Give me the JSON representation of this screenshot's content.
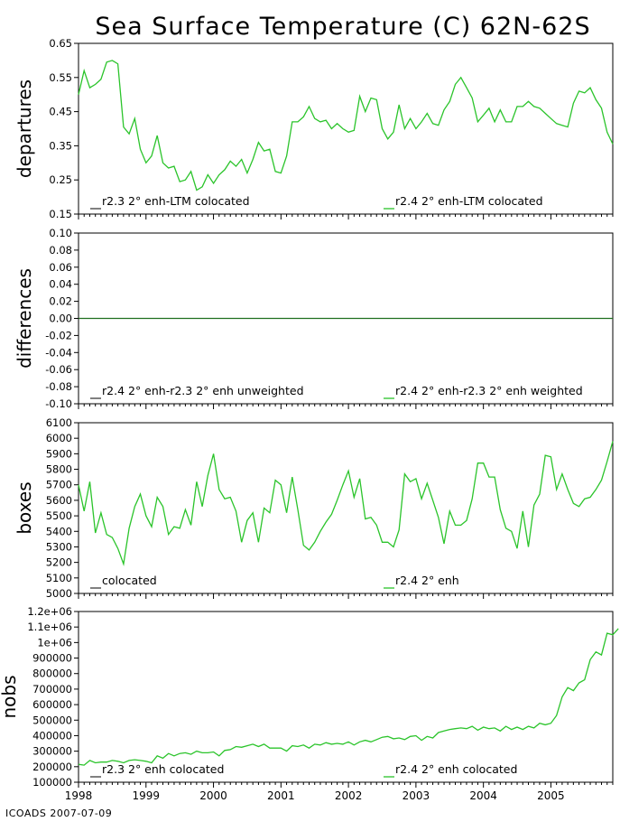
{
  "title": "Sea Surface Temperature (C) 62N-62S",
  "footer": "ICOADS 2007-07-09",
  "colors": {
    "series_a": "#000000",
    "series_b": "#2bc42b",
    "frame": "#000000"
  },
  "x_axis": {
    "range": [
      1998.0,
      2005.917
    ],
    "ticks": [
      1998,
      1999,
      2000,
      2001,
      2002,
      2003,
      2004,
      2005
    ],
    "tick_labels": [
      "1998",
      "1999",
      "2000",
      "2001",
      "2002",
      "2003",
      "2004",
      "2005"
    ]
  },
  "chart_data": [
    {
      "type": "line",
      "ylabel": "departures",
      "ylim": [
        0.15,
        0.65
      ],
      "yticks": [
        0.15,
        0.25,
        0.35,
        0.45,
        0.55,
        0.65
      ],
      "ytick_labels": [
        "0.15",
        "0.25",
        "0.35",
        "0.45",
        "0.55",
        "0.65"
      ],
      "legend": [
        "r2.3 2° enh-LTM colocated",
        "r2.4 2° enh-LTM colocated"
      ],
      "x_start": 1998.0,
      "x_step": 0.0833333,
      "series": [
        {
          "name": "r2.4 2° enh-LTM colocated",
          "values": [
            0.5,
            0.57,
            0.52,
            0.53,
            0.545,
            0.595,
            0.6,
            0.59,
            0.405,
            0.385,
            0.43,
            0.34,
            0.3,
            0.32,
            0.38,
            0.3,
            0.285,
            0.29,
            0.245,
            0.25,
            0.275,
            0.22,
            0.23,
            0.265,
            0.24,
            0.265,
            0.28,
            0.305,
            0.29,
            0.31,
            0.27,
            0.31,
            0.36,
            0.335,
            0.34,
            0.275,
            0.27,
            0.32,
            0.42,
            0.42,
            0.435,
            0.465,
            0.43,
            0.42,
            0.425,
            0.4,
            0.415,
            0.4,
            0.39,
            0.395,
            0.495,
            0.45,
            0.49,
            0.485,
            0.4,
            0.37,
            0.39,
            0.47,
            0.4,
            0.43,
            0.4,
            0.42,
            0.445,
            0.415,
            0.41,
            0.455,
            0.48,
            0.53,
            0.55,
            0.52,
            0.49,
            0.42,
            0.44,
            0.46,
            0.42,
            0.455,
            0.42,
            0.42,
            0.465,
            0.465,
            0.48,
            0.465,
            0.46,
            0.445,
            0.43,
            0.415,
            0.41,
            0.405,
            0.475,
            0.51,
            0.505,
            0.52,
            0.485,
            0.46,
            0.39,
            0.355
          ]
        }
      ]
    },
    {
      "type": "line",
      "ylabel": "differences",
      "ylim": [
        -0.1,
        0.1
      ],
      "yticks": [
        -0.1,
        -0.08,
        -0.06,
        -0.04,
        -0.02,
        0.0,
        0.02,
        0.04,
        0.06,
        0.08,
        0.1
      ],
      "ytick_labels": [
        "-0.10",
        "-0.08",
        "-0.06",
        "-0.04",
        "-0.02",
        "0.00",
        "0.02",
        "0.04",
        "0.06",
        "0.08",
        "0.10"
      ],
      "legend": [
        "r2.4 2° enh-r2.3 2° enh unweighted",
        "r2.4 2° enh-r2.3 2° enh weighted"
      ],
      "x_start": 1998.0,
      "x_step": 0.0833333,
      "series": [
        {
          "name": "r2.4 2° enh-r2.3 2° enh unweighted",
          "values": [
            0.0,
            0.0
          ]
        }
      ]
    },
    {
      "type": "line",
      "ylabel": "boxes",
      "ylim": [
        5000,
        6100
      ],
      "yticks": [
        5000,
        5100,
        5200,
        5300,
        5400,
        5500,
        5600,
        5700,
        5800,
        5900,
        6000,
        6100
      ],
      "ytick_labels": [
        "5000",
        "5100",
        "5200",
        "5300",
        "5400",
        "5500",
        "5600",
        "5700",
        "5800",
        "5900",
        "6000",
        "6100"
      ],
      "legend": [
        "colocated",
        "r2.4 2° enh"
      ],
      "x_start": 1998.0,
      "x_step": 0.0833333,
      "series": [
        {
          "name": "r2.4 2° enh",
          "values": [
            5700,
            5530,
            5720,
            5390,
            5520,
            5380,
            5360,
            5290,
            5190,
            5420,
            5560,
            5640,
            5500,
            5430,
            5620,
            5560,
            5380,
            5430,
            5420,
            5540,
            5440,
            5720,
            5560,
            5760,
            5900,
            5670,
            5610,
            5620,
            5530,
            5330,
            5470,
            5520,
            5330,
            5550,
            5520,
            5730,
            5700,
            5520,
            5750,
            5540,
            5310,
            5280,
            5330,
            5400,
            5460,
            5510,
            5600,
            5700,
            5790,
            5620,
            5740,
            5480,
            5490,
            5440,
            5330,
            5330,
            5300,
            5410,
            5770,
            5720,
            5740,
            5610,
            5710,
            5600,
            5490,
            5320,
            5530,
            5440,
            5440,
            5470,
            5610,
            5840,
            5840,
            5750,
            5750,
            5540,
            5420,
            5400,
            5290,
            5530,
            5300,
            5570,
            5640,
            5890,
            5880,
            5670,
            5770,
            5670,
            5580,
            5560,
            5610,
            5620,
            5670,
            5730,
            5850,
            5980
          ]
        }
      ]
    },
    {
      "type": "line",
      "ylabel": "nobs",
      "ylim": [
        100000,
        1200000
      ],
      "yticks": [
        100000,
        200000,
        300000,
        400000,
        500000,
        600000,
        700000,
        800000,
        900000,
        1000000,
        1100000,
        1200000
      ],
      "ytick_labels": [
        "100000",
        "200000",
        "300000",
        "400000",
        "500000",
        "600000",
        "700000",
        "800000",
        "900000",
        "1e+06",
        "1.1e+06",
        "1.2e+06"
      ],
      "legend": [
        "r2.3 2° enh colocated",
        "r2.4 2° enh colocated"
      ],
      "x_start": 1998.0,
      "x_step": 0.0833333,
      "series": [
        {
          "name": "r2.4 2° enh colocated",
          "values": [
            215000,
            210000,
            240000,
            225000,
            230000,
            230000,
            240000,
            235000,
            225000,
            240000,
            245000,
            240000,
            235000,
            225000,
            270000,
            255000,
            285000,
            270000,
            285000,
            290000,
            280000,
            300000,
            290000,
            290000,
            295000,
            270000,
            305000,
            310000,
            330000,
            325000,
            335000,
            345000,
            330000,
            345000,
            320000,
            320000,
            320000,
            300000,
            335000,
            330000,
            340000,
            320000,
            345000,
            340000,
            355000,
            345000,
            350000,
            345000,
            360000,
            340000,
            360000,
            370000,
            360000,
            375000,
            390000,
            395000,
            380000,
            385000,
            375000,
            395000,
            400000,
            370000,
            395000,
            385000,
            420000,
            430000,
            440000,
            445000,
            450000,
            445000,
            460000,
            435000,
            455000,
            445000,
            450000,
            430000,
            460000,
            440000,
            455000,
            440000,
            460000,
            450000,
            480000,
            470000,
            480000,
            530000,
            650000,
            710000,
            690000,
            740000,
            760000,
            890000,
            940000,
            920000,
            1060000,
            1050000,
            1090000
          ]
        }
      ]
    }
  ]
}
